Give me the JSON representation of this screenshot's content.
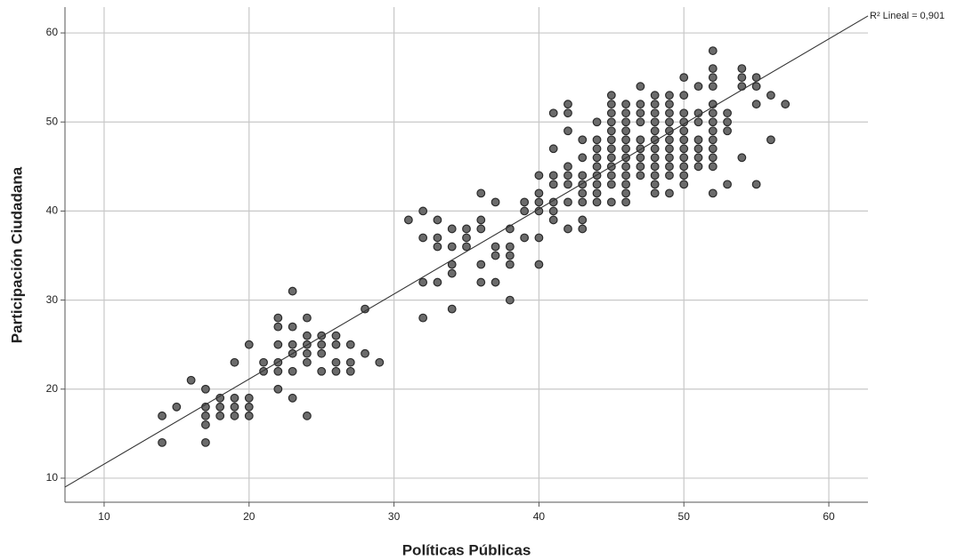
{
  "chart_data": {
    "type": "scatter",
    "x_label": "Políticas Públicas",
    "y_label": "Participación Ciudadana",
    "xlim": [
      7.3,
      62.7
    ],
    "ylim": [
      7.3,
      62.9
    ],
    "xticks": [
      10,
      20,
      30,
      40,
      50,
      60
    ],
    "yticks": [
      10,
      20,
      30,
      40,
      50,
      60
    ],
    "grid": true,
    "color": "#6b6b6b",
    "fit_line": {
      "intercept": 2.03,
      "slope": 0.955,
      "label": "R² Lineal = 0,901"
    },
    "x": [
      14,
      14,
      15,
      16,
      17,
      17,
      17,
      17,
      17,
      18,
      18,
      18,
      19,
      19,
      19,
      19,
      20,
      20,
      20,
      20,
      21,
      21,
      22,
      22,
      22,
      22,
      22,
      22,
      23,
      23,
      23,
      23,
      23,
      23,
      24,
      24,
      24,
      24,
      24,
      24,
      25,
      25,
      25,
      25,
      26,
      26,
      26,
      26,
      27,
      27,
      27,
      28,
      28,
      29,
      31,
      32,
      32,
      32,
      32,
      33,
      33,
      33,
      33,
      34,
      34,
      34,
      34,
      34,
      35,
      35,
      35,
      36,
      36,
      36,
      36,
      36,
      37,
      37,
      37,
      37,
      38,
      38,
      38,
      38,
      38,
      39,
      39,
      39,
      40,
      40,
      40,
      40,
      40,
      40,
      41,
      41,
      41,
      41,
      41,
      41,
      41,
      42,
      42,
      42,
      42,
      42,
      42,
      42,
      42,
      43,
      43,
      43,
      43,
      43,
      43,
      43,
      43,
      44,
      44,
      44,
      44,
      44,
      44,
      44,
      44,
      44,
      45,
      45,
      45,
      45,
      45,
      45,
      45,
      45,
      45,
      45,
      45,
      45,
      46,
      46,
      46,
      46,
      46,
      46,
      46,
      46,
      46,
      46,
      46,
      46,
      47,
      47,
      47,
      47,
      47,
      47,
      47,
      47,
      47,
      48,
      48,
      48,
      48,
      48,
      48,
      48,
      48,
      48,
      48,
      48,
      48,
      49,
      49,
      49,
      49,
      49,
      49,
      49,
      49,
      49,
      49,
      49,
      50,
      50,
      50,
      50,
      50,
      50,
      50,
      50,
      50,
      50,
      50,
      51,
      51,
      51,
      51,
      51,
      51,
      51,
      52,
      52,
      52,
      52,
      52,
      52,
      52,
      52,
      52,
      52,
      52,
      52,
      52,
      53,
      53,
      53,
      53,
      54,
      54,
      54,
      54,
      55,
      55,
      55,
      55,
      56,
      56,
      57
    ],
    "y": [
      17,
      14,
      18,
      21,
      20,
      18,
      17,
      16,
      14,
      19,
      18,
      17,
      23,
      19,
      18,
      17,
      25,
      19,
      18,
      17,
      23,
      22,
      28,
      27,
      25,
      23,
      22,
      20,
      31,
      27,
      25,
      24,
      22,
      19,
      28,
      26,
      25,
      24,
      23,
      17,
      26,
      25,
      24,
      22,
      26,
      25,
      23,
      22,
      25,
      23,
      22,
      29,
      24,
      23,
      39,
      40,
      37,
      32,
      28,
      39,
      37,
      36,
      32,
      38,
      36,
      34,
      33,
      29,
      38,
      37,
      36,
      42,
      39,
      38,
      34,
      32,
      41,
      36,
      35,
      32,
      38,
      36,
      35,
      34,
      30,
      41,
      40,
      37,
      44,
      42,
      41,
      40,
      37,
      34,
      51,
      47,
      44,
      43,
      41,
      40,
      39,
      52,
      51,
      49,
      45,
      44,
      43,
      41,
      38,
      48,
      46,
      44,
      43,
      42,
      41,
      39,
      38,
      50,
      48,
      47,
      46,
      45,
      44,
      43,
      42,
      41,
      53,
      52,
      51,
      50,
      49,
      48,
      47,
      46,
      45,
      44,
      43,
      41,
      52,
      51,
      50,
      49,
      48,
      47,
      46,
      45,
      44,
      43,
      42,
      41,
      54,
      52,
      51,
      50,
      48,
      47,
      46,
      45,
      44,
      53,
      52,
      51,
      50,
      49,
      48,
      47,
      46,
      45,
      44,
      43,
      42,
      53,
      52,
      51,
      50,
      49,
      48,
      47,
      46,
      45,
      44,
      42,
      55,
      53,
      51,
      50,
      49,
      48,
      47,
      46,
      45,
      44,
      43,
      54,
      51,
      50,
      48,
      47,
      46,
      45,
      58,
      56,
      55,
      54,
      52,
      51,
      50,
      49,
      48,
      47,
      46,
      45,
      42,
      51,
      50,
      49,
      43,
      56,
      55,
      54,
      46,
      55,
      54,
      52,
      43,
      53,
      48,
      52
    ]
  }
}
